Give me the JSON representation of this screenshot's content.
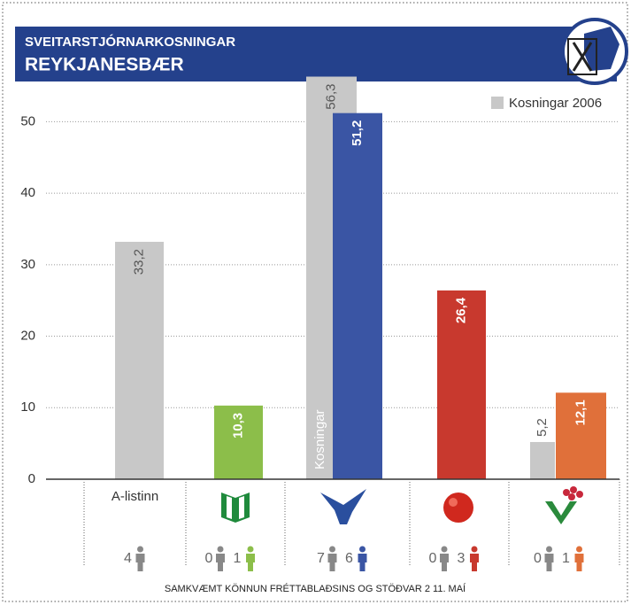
{
  "chart_data": {
    "type": "bar",
    "title": "SVEITARSTJÓRNARKOSNINGAR",
    "subtitle": "REYKJANESBÆR",
    "note": "SAMKVÆMT KÖNNUN FRÉTTABLAÐSINS OG STÖÐVAR 2 11. MAÍ",
    "annotation": "Kosningar",
    "categories": [
      "A-listinn",
      null,
      null,
      null,
      null
    ],
    "series": [
      {
        "name": "Kosningar 2006",
        "color": "#c8c8c8",
        "values": [
          33.2,
          null,
          56.3,
          null,
          5.2
        ],
        "value_labels": [
          "33,2",
          null,
          "56,3",
          null,
          "5,2"
        ]
      },
      {
        "colors": [
          null,
          "#8cbe4a",
          "#3a55a4",
          "#c8392e",
          "#e0703a"
        ],
        "values": [
          null,
          10.3,
          51.2,
          26.4,
          12.1
        ],
        "value_labels": [
          null,
          "10,3",
          "51,2",
          "26,4",
          "12,1"
        ]
      }
    ],
    "seats_2006": [
      4,
      0,
      7,
      0,
      0
    ],
    "seats_poll": [
      null,
      1,
      6,
      3,
      1
    ],
    "ylim": [
      0,
      55
    ],
    "yticks": [
      0,
      10,
      20,
      30,
      40,
      50
    ],
    "grid": true,
    "legend": "top-right"
  }
}
